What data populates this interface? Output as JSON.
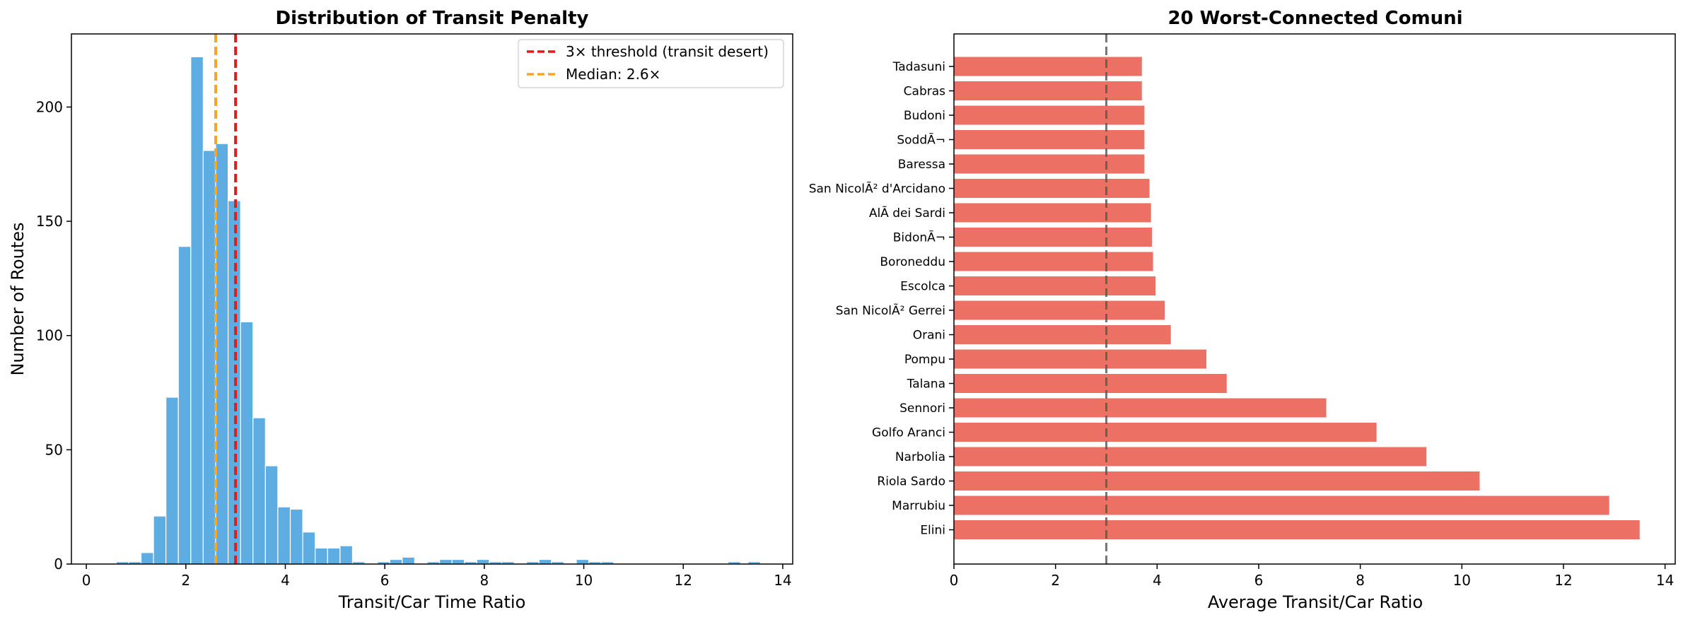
{
  "chart_data": [
    {
      "type": "bar",
      "subtype": "histogram",
      "title": "Distribution of Transit Penalty",
      "xlabel": "Transit/Car Time Ratio",
      "ylabel": "Number of Routes",
      "xlim": [
        -0.3,
        14.2
      ],
      "ylim": [
        0,
        232
      ],
      "xticks": [
        0,
        2,
        4,
        6,
        8,
        10,
        12,
        14
      ],
      "yticks": [
        0,
        50,
        100,
        150,
        200
      ],
      "bin_width": 0.25,
      "bins": [
        [
          0.6,
          1
        ],
        [
          0.85,
          1
        ],
        [
          1.1,
          5
        ],
        [
          1.35,
          21
        ],
        [
          1.6,
          73
        ],
        [
          1.85,
          139
        ],
        [
          2.1,
          222
        ],
        [
          2.35,
          181
        ],
        [
          2.6,
          184
        ],
        [
          2.85,
          159
        ],
        [
          3.1,
          106
        ],
        [
          3.35,
          64
        ],
        [
          3.6,
          43
        ],
        [
          3.85,
          25
        ],
        [
          4.1,
          24
        ],
        [
          4.35,
          14
        ],
        [
          4.6,
          7
        ],
        [
          4.85,
          7
        ],
        [
          5.1,
          8
        ],
        [
          5.35,
          1
        ],
        [
          5.6,
          0
        ],
        [
          5.85,
          1
        ],
        [
          6.1,
          2
        ],
        [
          6.35,
          3
        ],
        [
          6.6,
          0
        ],
        [
          6.85,
          1
        ],
        [
          7.1,
          2
        ],
        [
          7.35,
          2
        ],
        [
          7.6,
          1
        ],
        [
          7.85,
          2
        ],
        [
          8.1,
          1
        ],
        [
          8.35,
          1
        ],
        [
          8.6,
          0
        ],
        [
          8.85,
          1
        ],
        [
          9.1,
          2
        ],
        [
          9.35,
          1
        ],
        [
          9.6,
          0
        ],
        [
          9.85,
          2
        ],
        [
          10.1,
          1
        ],
        [
          10.35,
          1
        ],
        [
          12.9,
          1
        ],
        [
          13.3,
          1
        ]
      ],
      "bar_color": "#5dade2",
      "reference_lines": [
        {
          "x": 3.0,
          "label": "3× threshold (transit desert)",
          "color": "#e31a1c"
        },
        {
          "x": 2.6,
          "label": "Median: 2.6×",
          "color": "#f5a623"
        }
      ],
      "legend_position": "upper-right"
    },
    {
      "type": "bar",
      "orientation": "horizontal",
      "title": "20 Worst-Connected Comuni",
      "xlabel": "Average Transit/Car Ratio",
      "ylabel": "",
      "xlim": [
        0,
        14.2
      ],
      "xticks": [
        0,
        2,
        4,
        6,
        8,
        10,
        12,
        14
      ],
      "categories": [
        "Tadasuni",
        "Cabras",
        "Budoni",
        "SoddÃ¬",
        "Baressa",
        "San NicolÃ² d'Arcidano",
        "AlÃ  dei Sardi",
        "BidonÃ¬",
        "Boroneddu",
        "Escolca",
        "San NicolÃ² Gerrei",
        "Orani",
        "Pompu",
        "Talana",
        "Sennori",
        "Golfo Aranci",
        "Narbolia",
        "Riola Sardo",
        "Marrubiu",
        "Elini"
      ],
      "values": [
        3.7,
        3.7,
        3.75,
        3.75,
        3.75,
        3.85,
        3.88,
        3.9,
        3.92,
        3.97,
        4.15,
        4.27,
        4.97,
        5.37,
        7.33,
        8.32,
        9.3,
        10.35,
        12.9,
        13.5
      ],
      "bar_color": "#ec7063",
      "reference_lines": [
        {
          "x": 3.0,
          "color": "#555555",
          "style": "dashed"
        }
      ]
    }
  ]
}
